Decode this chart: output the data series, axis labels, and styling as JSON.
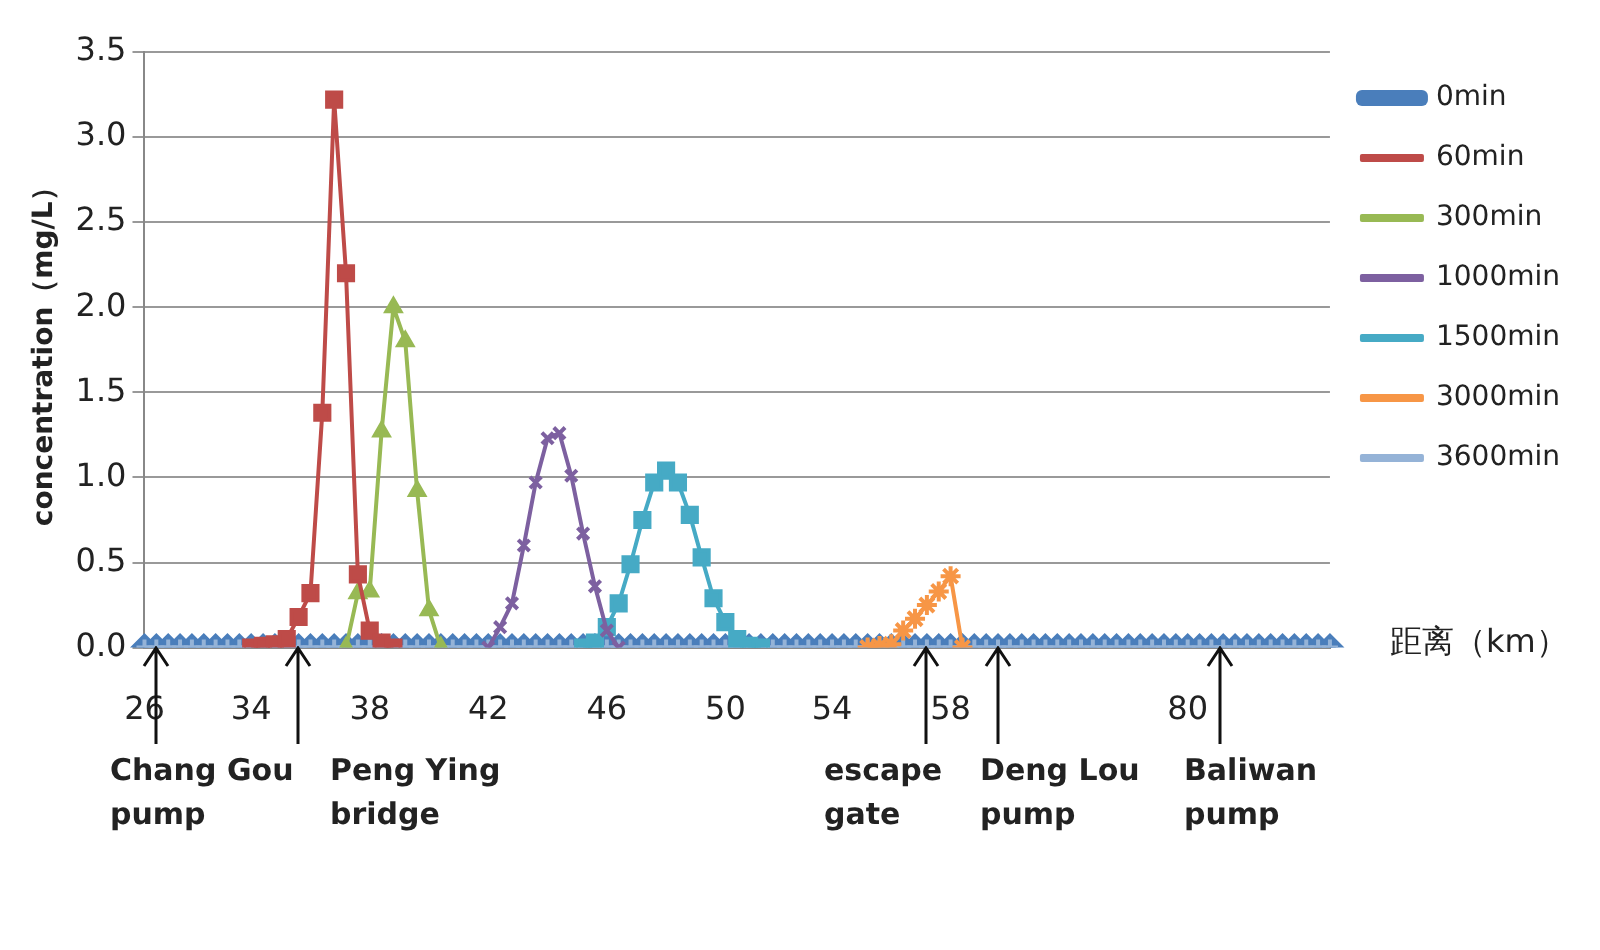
{
  "chart_data": {
    "type": "line",
    "ylabel": "concentration（mg/L）",
    "xlabel": "距离（km）",
    "categories": [
      "26",
      null,
      null,
      null,
      null,
      null,
      null,
      null,
      null,
      "34",
      null,
      null,
      null,
      null,
      null,
      null,
      null,
      null,
      null,
      "38",
      null,
      null,
      null,
      null,
      null,
      null,
      null,
      null,
      null,
      "42",
      null,
      null,
      null,
      null,
      null,
      null,
      null,
      null,
      null,
      "46",
      null,
      null,
      null,
      null,
      null,
      null,
      null,
      null,
      null,
      "50",
      null,
      null,
      null,
      null,
      null,
      null,
      null,
      null,
      "54",
      null,
      null,
      null,
      null,
      null,
      null,
      null,
      null,
      null,
      "58",
      null,
      null,
      null,
      null,
      null,
      null,
      null,
      null,
      null,
      null,
      null,
      null,
      null,
      null,
      null,
      null,
      null,
      null,
      null,
      "80",
      null,
      null,
      null,
      null,
      null,
      null,
      null,
      null,
      null,
      null,
      null,
      null
    ],
    "series": [
      {
        "name": "0min",
        "color": "#4a7ebb",
        "marker": "diamond",
        "values": [
          0,
          0,
          0,
          0,
          0,
          0,
          0,
          0,
          0,
          0,
          0,
          0,
          0,
          0,
          0,
          0,
          0,
          0,
          0,
          0,
          0,
          0,
          0,
          0,
          0,
          0,
          0,
          0,
          0,
          0,
          0,
          0,
          0,
          0,
          0,
          0,
          0,
          0,
          0,
          0,
          0,
          0,
          0,
          0,
          0,
          0,
          0,
          0,
          0,
          0,
          0,
          0,
          0,
          0,
          0,
          0,
          0,
          0,
          0,
          0,
          0,
          0,
          0,
          0,
          0,
          0,
          0,
          0,
          0,
          0,
          0,
          0,
          0,
          0,
          0,
          0,
          0,
          0,
          0,
          0,
          0,
          0,
          0,
          0,
          0,
          0,
          0,
          0,
          0,
          0,
          0,
          0,
          0,
          0,
          0,
          0,
          0,
          0,
          0,
          0,
          0
        ]
      },
      {
        "name": "60min",
        "color": "#be4b48",
        "marker": "square",
        "values": [
          null,
          null,
          null,
          null,
          null,
          null,
          null,
          null,
          null,
          0,
          0.01,
          0.02,
          0.05,
          0.18,
          0.32,
          1.38,
          3.22,
          2.2,
          0.43,
          0.1,
          0.03,
          0,
          null,
          null,
          null,
          null,
          null,
          null,
          null,
          null,
          null,
          null,
          null,
          null,
          null,
          null,
          null,
          null,
          null,
          null,
          null,
          null,
          null,
          null,
          null,
          null,
          null,
          null,
          null,
          null,
          null,
          null,
          null,
          null,
          null,
          null,
          null,
          null,
          null,
          null,
          null,
          null,
          null,
          null,
          null,
          null,
          null,
          null,
          null,
          null,
          null,
          null,
          null,
          null,
          null,
          null,
          null,
          null,
          null,
          null,
          null,
          null,
          null,
          null,
          null,
          null,
          null,
          null,
          null,
          null,
          null,
          null,
          null,
          null,
          null,
          null,
          null,
          null,
          null,
          null,
          null
        ]
      },
      {
        "name": "300min",
        "color": "#98b954",
        "marker": "triangle",
        "values": [
          null,
          null,
          null,
          null,
          null,
          null,
          null,
          null,
          null,
          null,
          null,
          null,
          null,
          null,
          null,
          null,
          null,
          0,
          0.32,
          0.33,
          1.27,
          2.0,
          1.8,
          0.92,
          0.22,
          0,
          null,
          null,
          null,
          null,
          null,
          null,
          null,
          null,
          null,
          null,
          null,
          null,
          null,
          null,
          null,
          null,
          null,
          null,
          null,
          null,
          null,
          null,
          null,
          null,
          null,
          null,
          null,
          null,
          null,
          null,
          null,
          null,
          null,
          null,
          null,
          null,
          null,
          null,
          null,
          null,
          null,
          null,
          null,
          null,
          null,
          null,
          null,
          null,
          null,
          null,
          null,
          null,
          null,
          null,
          null,
          null,
          null,
          null,
          null,
          null,
          null,
          null,
          null,
          null,
          null,
          null,
          null,
          null,
          null,
          null,
          null,
          null,
          null,
          null,
          null
        ]
      },
      {
        "name": "1000min",
        "color": "#7d60a0",
        "marker": "cross",
        "values": [
          null,
          null,
          null,
          null,
          null,
          null,
          null,
          null,
          null,
          null,
          null,
          null,
          null,
          null,
          null,
          null,
          null,
          null,
          null,
          null,
          null,
          null,
          null,
          null,
          null,
          null,
          null,
          null,
          null,
          0,
          0.12,
          0.26,
          0.6,
          0.97,
          1.23,
          1.26,
          1.01,
          0.67,
          0.36,
          0.1,
          0,
          null,
          null,
          null,
          null,
          null,
          null,
          null,
          null,
          null,
          null,
          null,
          null,
          null,
          null,
          null,
          null,
          null,
          null,
          null,
          null,
          null,
          null,
          null,
          null,
          null,
          null,
          null,
          null,
          null,
          null,
          null,
          null,
          null,
          null,
          null,
          null,
          null,
          null,
          null,
          null,
          null,
          null,
          null,
          null,
          null,
          null,
          null,
          null,
          null,
          null,
          null,
          null,
          null,
          null,
          null,
          null,
          null,
          null,
          null,
          null
        ]
      },
      {
        "name": "1500min",
        "color": "#46aac5",
        "marker": "square",
        "values": [
          null,
          null,
          null,
          null,
          null,
          null,
          null,
          null,
          null,
          null,
          null,
          null,
          null,
          null,
          null,
          null,
          null,
          null,
          null,
          null,
          null,
          null,
          null,
          null,
          null,
          null,
          null,
          null,
          null,
          null,
          null,
          null,
          null,
          null,
          null,
          null,
          null,
          0,
          0.03,
          0.12,
          0.26,
          0.49,
          0.75,
          0.97,
          1.04,
          0.97,
          0.78,
          0.53,
          0.29,
          0.15,
          0.05,
          0.01,
          0,
          null,
          null,
          null,
          null,
          null,
          null,
          null,
          null,
          null,
          null,
          null,
          null,
          null,
          null,
          null,
          null,
          null,
          null,
          null,
          null,
          null,
          null,
          null,
          null,
          null,
          null,
          null,
          null,
          null,
          null,
          null,
          null,
          null,
          null,
          null,
          null,
          null,
          null,
          null,
          null,
          null,
          null,
          null,
          null,
          null,
          null,
          null,
          null
        ]
      },
      {
        "name": "3000min",
        "color": "#f79646",
        "marker": "cross",
        "values": [
          null,
          null,
          null,
          null,
          null,
          null,
          null,
          null,
          null,
          null,
          null,
          null,
          null,
          null,
          null,
          null,
          null,
          null,
          null,
          null,
          null,
          null,
          null,
          null,
          null,
          null,
          null,
          null,
          null,
          null,
          null,
          null,
          null,
          null,
          null,
          null,
          null,
          null,
          null,
          null,
          null,
          null,
          null,
          null,
          null,
          null,
          null,
          null,
          null,
          null,
          null,
          null,
          null,
          null,
          null,
          null,
          null,
          null,
          null,
          null,
          null,
          0,
          0.01,
          0.02,
          0.1,
          0.17,
          0.25,
          0.33,
          0.42,
          0,
          null,
          null,
          null,
          null,
          null,
          null,
          null,
          null,
          null,
          null,
          null,
          null,
          null,
          null,
          null,
          null,
          null,
          null,
          null,
          null,
          null,
          null,
          null,
          null,
          null,
          null,
          null,
          null,
          null,
          null,
          null
        ]
      },
      {
        "name": "3600min",
        "color": "#95b3d7",
        "marker": "cross",
        "values": [
          0,
          0,
          0,
          0,
          0,
          0,
          0,
          0,
          0,
          0,
          0,
          0,
          0,
          0,
          0,
          0,
          0,
          0,
          0,
          0,
          0,
          0,
          0,
          0,
          0,
          0,
          0,
          0,
          0,
          0,
          0,
          0,
          0,
          0,
          0,
          0,
          0,
          0,
          0,
          0,
          0,
          0,
          0,
          0,
          0,
          0,
          0,
          0,
          0,
          0,
          0,
          0,
          0,
          0,
          0,
          0,
          0,
          0,
          0,
          0,
          0,
          0,
          0,
          0,
          0,
          0,
          0,
          0,
          0,
          0,
          0,
          0,
          0,
          0,
          0,
          0,
          0,
          0,
          0,
          0,
          0,
          0,
          0,
          0,
          0,
          0,
          0,
          0,
          0,
          0,
          0,
          0,
          0,
          0,
          0,
          0,
          0,
          0,
          0,
          0,
          0
        ]
      }
    ],
    "ylim": [
      0,
      3.5
    ],
    "yticks": [
      {
        "value": 0,
        "label": "0.0"
      },
      {
        "value": 0.5,
        "label": "0.5"
      },
      {
        "value": 1,
        "label": "1.0"
      },
      {
        "value": 1.5,
        "label": "1.5"
      },
      {
        "value": 2,
        "label": "2.0"
      },
      {
        "value": 2.5,
        "label": "2.5"
      },
      {
        "value": 3,
        "label": "3.0"
      },
      {
        "value": 3.5,
        "label": "3.5"
      }
    ],
    "grid": "y",
    "legend": "right",
    "line_style": "solid",
    "annotations": [
      "Chang Gou pump",
      "Peng Ying bridge",
      "escape gate",
      "Deng Lou pump",
      "Baliwan pump"
    ]
  }
}
